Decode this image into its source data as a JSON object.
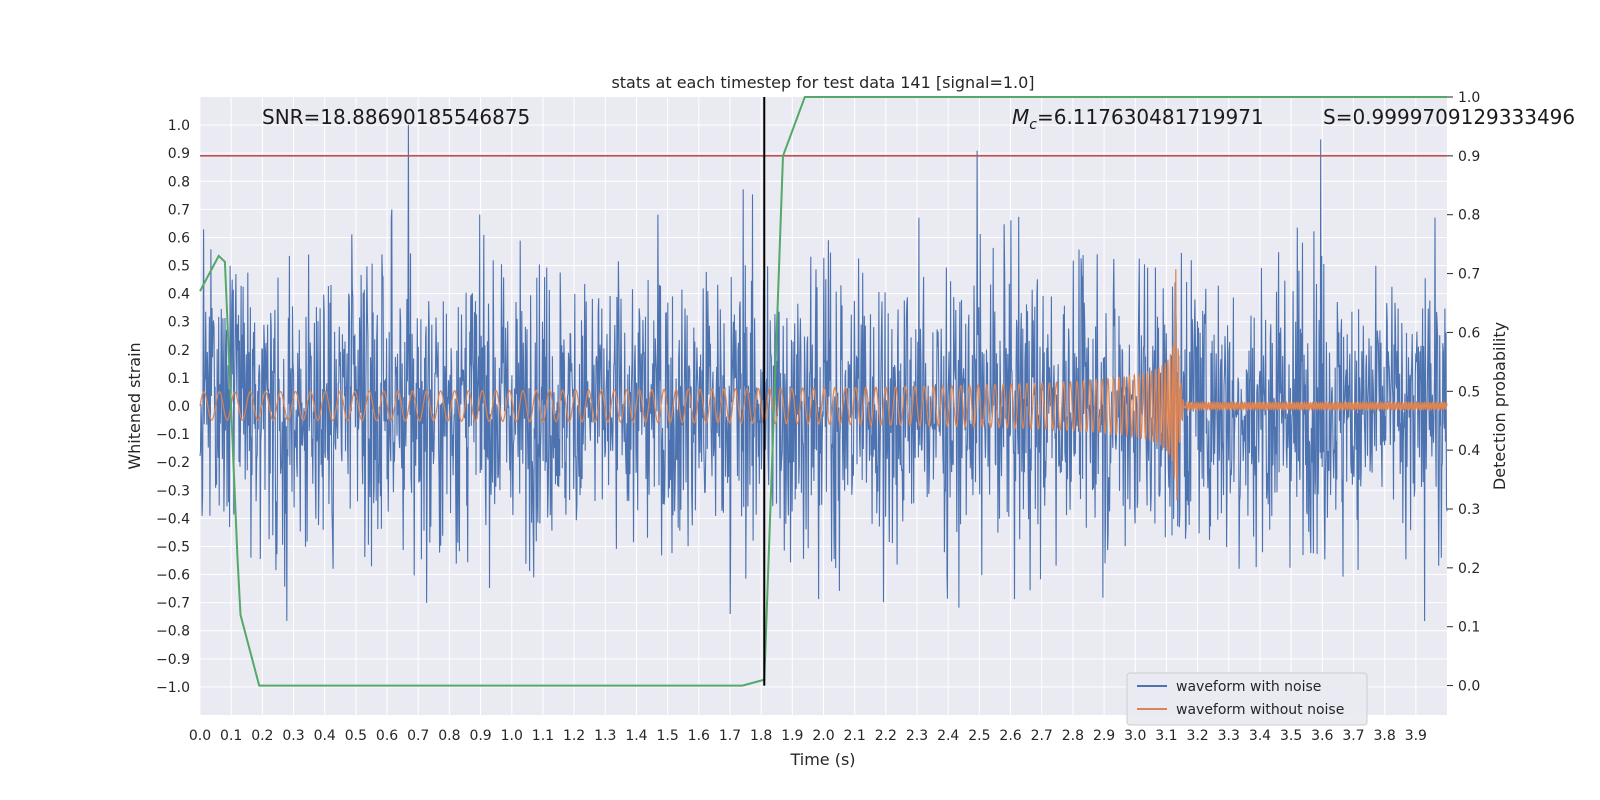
{
  "chart_data": {
    "type": "line",
    "title": "stats at each timestep for test data 141 [signal=1.0]",
    "xlabel": "Time (s)",
    "ylabel": "Whitened strain",
    "y2label": "Detection probability",
    "xlim": [
      0.0,
      4.0
    ],
    "ylim": [
      -1.1,
      1.1
    ],
    "y2lim": [
      -0.05,
      1.0
    ],
    "grid": true,
    "x_ticks": [
      "0.0",
      "0.1",
      "0.2",
      "0.3",
      "0.4",
      "0.5",
      "0.6",
      "0.7",
      "0.8",
      "0.9",
      "1.0",
      "1.1",
      "1.2",
      "1.3",
      "1.4",
      "1.5",
      "1.6",
      "1.7",
      "1.8",
      "1.9",
      "2.0",
      "2.1",
      "2.2",
      "2.3",
      "2.4",
      "2.5",
      "2.6",
      "2.7",
      "2.8",
      "2.9",
      "3.0",
      "3.1",
      "3.2",
      "3.3",
      "3.4",
      "3.5",
      "3.6",
      "3.7",
      "3.8",
      "3.9"
    ],
    "y_ticks": [
      "1.0",
      "0.9",
      "0.8",
      "0.7",
      "0.6",
      "0.5",
      "0.4",
      "0.3",
      "0.2",
      "0.1",
      "0.0",
      "−0.1",
      "−0.2",
      "−0.3",
      "−0.4",
      "−0.5",
      "−0.6",
      "−0.7",
      "−0.8",
      "−0.9",
      "−1.0"
    ],
    "y2_ticks": [
      "1.0",
      "0.9",
      "0.8",
      "0.7",
      "0.6",
      "0.5",
      "0.4",
      "0.3",
      "0.2",
      "0.1",
      "0.0"
    ],
    "annotations": {
      "snr": "SNR=18.88690185546875",
      "mc_symbol": "M",
      "mc_sub": "c",
      "mc_value": "=6.117630481719971",
      "s": "S=0.9999709129333496"
    },
    "legend": {
      "position": "lower-right",
      "entries": [
        "waveform with noise",
        "waveform without noise"
      ]
    },
    "colors": {
      "noise": "#4c72b0",
      "clean": "#dd8452",
      "probability": "#55a868",
      "threshold": "#c44e52",
      "marker": "#000000",
      "background": "#eaeaf2",
      "grid": "#ffffff"
    },
    "threshold_probability": 0.9,
    "marker_time": 1.81,
    "signal_merger_time": 3.13,
    "noise_envelope": {
      "typical_amplitude": 0.45,
      "peak_amplitude": 1.0
    },
    "clean_waveform": {
      "start_amplitude": 0.05,
      "peak_amplitude": 0.55,
      "peak_time": 3.13,
      "start_frequency_hz": 20,
      "end_frequency_hz": 120
    },
    "probability_series": {
      "name": "detection probability",
      "t": [
        0.0,
        0.06,
        0.08,
        0.12,
        0.13,
        0.19,
        1.74,
        1.81,
        1.87,
        1.94,
        4.0
      ],
      "p": [
        0.67,
        0.73,
        0.72,
        0.22,
        0.12,
        0.0,
        0.0,
        0.01,
        0.9,
        1.0,
        1.0
      ]
    }
  }
}
